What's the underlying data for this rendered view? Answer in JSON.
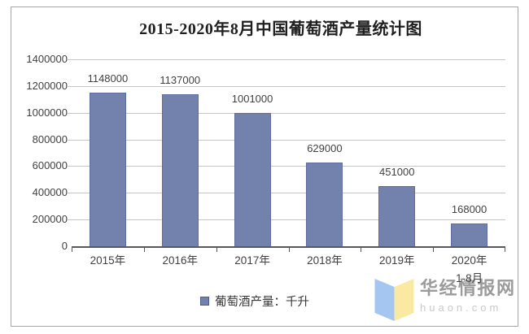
{
  "title": "2015-2020年8月中国葡萄酒产量统计图",
  "chart_data": {
    "type": "bar",
    "title": "2015-2020年8月中国葡萄酒产量统计图",
    "categories": [
      "2015年",
      "2016年",
      "2017年",
      "2018年",
      "2019年",
      "2020年"
    ],
    "category_sublabels": [
      "",
      "",
      "",
      "",
      "",
      "1-8月"
    ],
    "values": [
      1148000,
      1137000,
      1001000,
      629000,
      451000,
      168000
    ],
    "data_labels": [
      "1148000",
      "1137000",
      "1001000",
      "629000",
      "451000",
      "168000"
    ],
    "ylim": [
      0,
      1400000
    ],
    "ytick_interval": 200000,
    "yticks": [
      "0",
      "200000",
      "400000",
      "600000",
      "800000",
      "1000000",
      "1200000",
      "1400000"
    ],
    "grid": "horizontal",
    "legend_position": "bottom",
    "legend": [
      {
        "label": "葡萄酒产量：千升",
        "color": "#7381ad"
      }
    ],
    "colors": {
      "bar_fill": "#7381ad",
      "bar_border": "#5e6ca0",
      "gridline": "#c6c6c6",
      "axis_line": "#595959",
      "label_text": "#404040",
      "frame_border": "#a6a6a6"
    }
  },
  "watermark": {
    "name": "华经情报网",
    "domain": "huaon.com",
    "logo": {
      "icon_name": "open-book-logo-icon",
      "left_color": "#a6c6f2",
      "right_color": "#fae9a2"
    }
  }
}
